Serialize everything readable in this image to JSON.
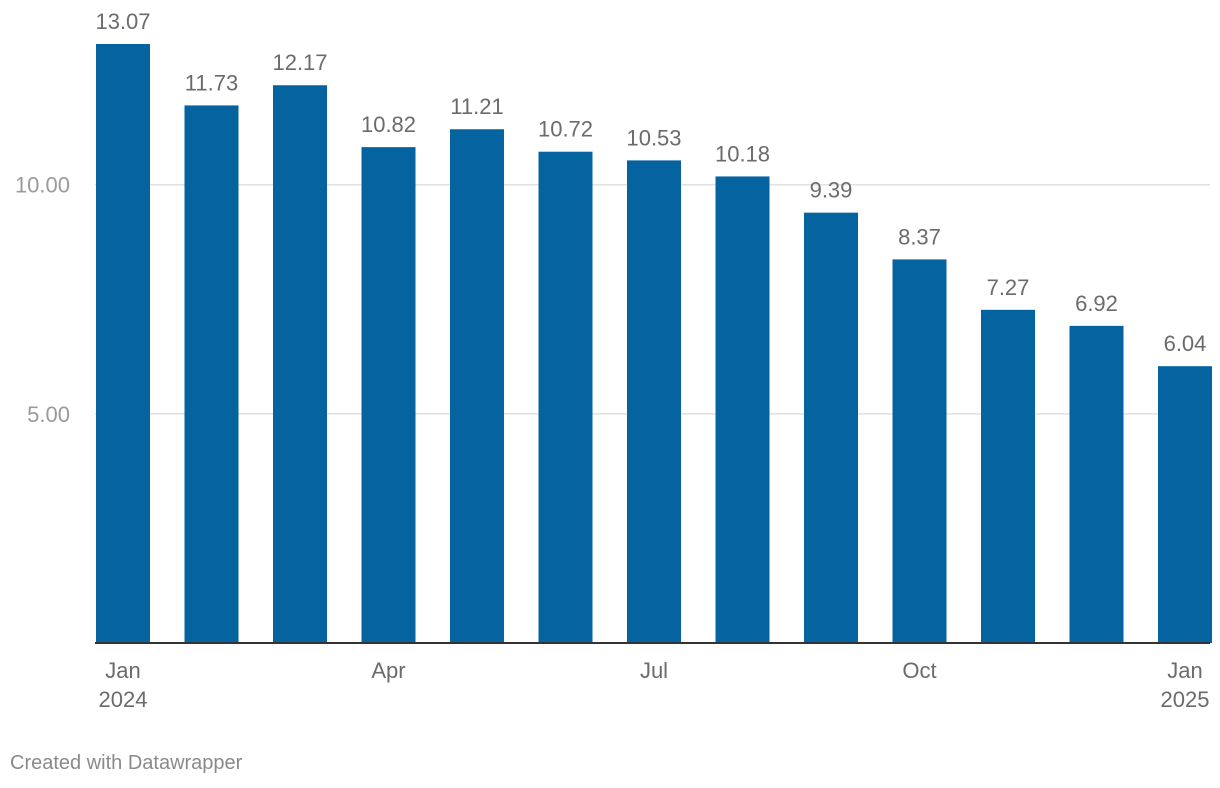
{
  "chart_data": {
    "type": "bar",
    "title": "",
    "xlabel": "",
    "ylabel": "",
    "categories": [
      "Jan 2024",
      "Feb 2024",
      "Mar 2024",
      "Apr 2024",
      "May 2024",
      "Jun 2024",
      "Jul 2024",
      "Aug 2024",
      "Sep 2024",
      "Oct 2024",
      "Nov 2024",
      "Dec 2024",
      "Jan 2025"
    ],
    "values": [
      13.07,
      11.73,
      12.17,
      10.82,
      11.21,
      10.72,
      10.53,
      10.18,
      9.39,
      8.37,
      7.27,
      6.92,
      6.04
    ],
    "value_labels": [
      "13.07",
      "11.73",
      "12.17",
      "10.82",
      "11.21",
      "10.72",
      "10.53",
      "10.18",
      "9.39",
      "8.37",
      "7.27",
      "6.92",
      "6.04"
    ],
    "ylim": [
      0,
      13.07
    ],
    "y_ticks": [
      {
        "value": 5,
        "label": "5.00"
      },
      {
        "value": 10,
        "label": "10.00"
      }
    ],
    "x_tick_labels": [
      {
        "index": 0,
        "lines": [
          "Jan",
          "2024"
        ]
      },
      {
        "index": 3,
        "lines": [
          "Apr"
        ]
      },
      {
        "index": 6,
        "lines": [
          "Jul"
        ]
      },
      {
        "index": 9,
        "lines": [
          "Oct"
        ]
      },
      {
        "index": 12,
        "lines": [
          "Jan",
          "2025"
        ]
      }
    ],
    "grid": true,
    "legend": "none",
    "bar_color": "#0563a0",
    "grid_color": "#e1e1e1",
    "axis_color": "#333333"
  },
  "footer": {
    "credit": "Created with Datawrapper"
  }
}
